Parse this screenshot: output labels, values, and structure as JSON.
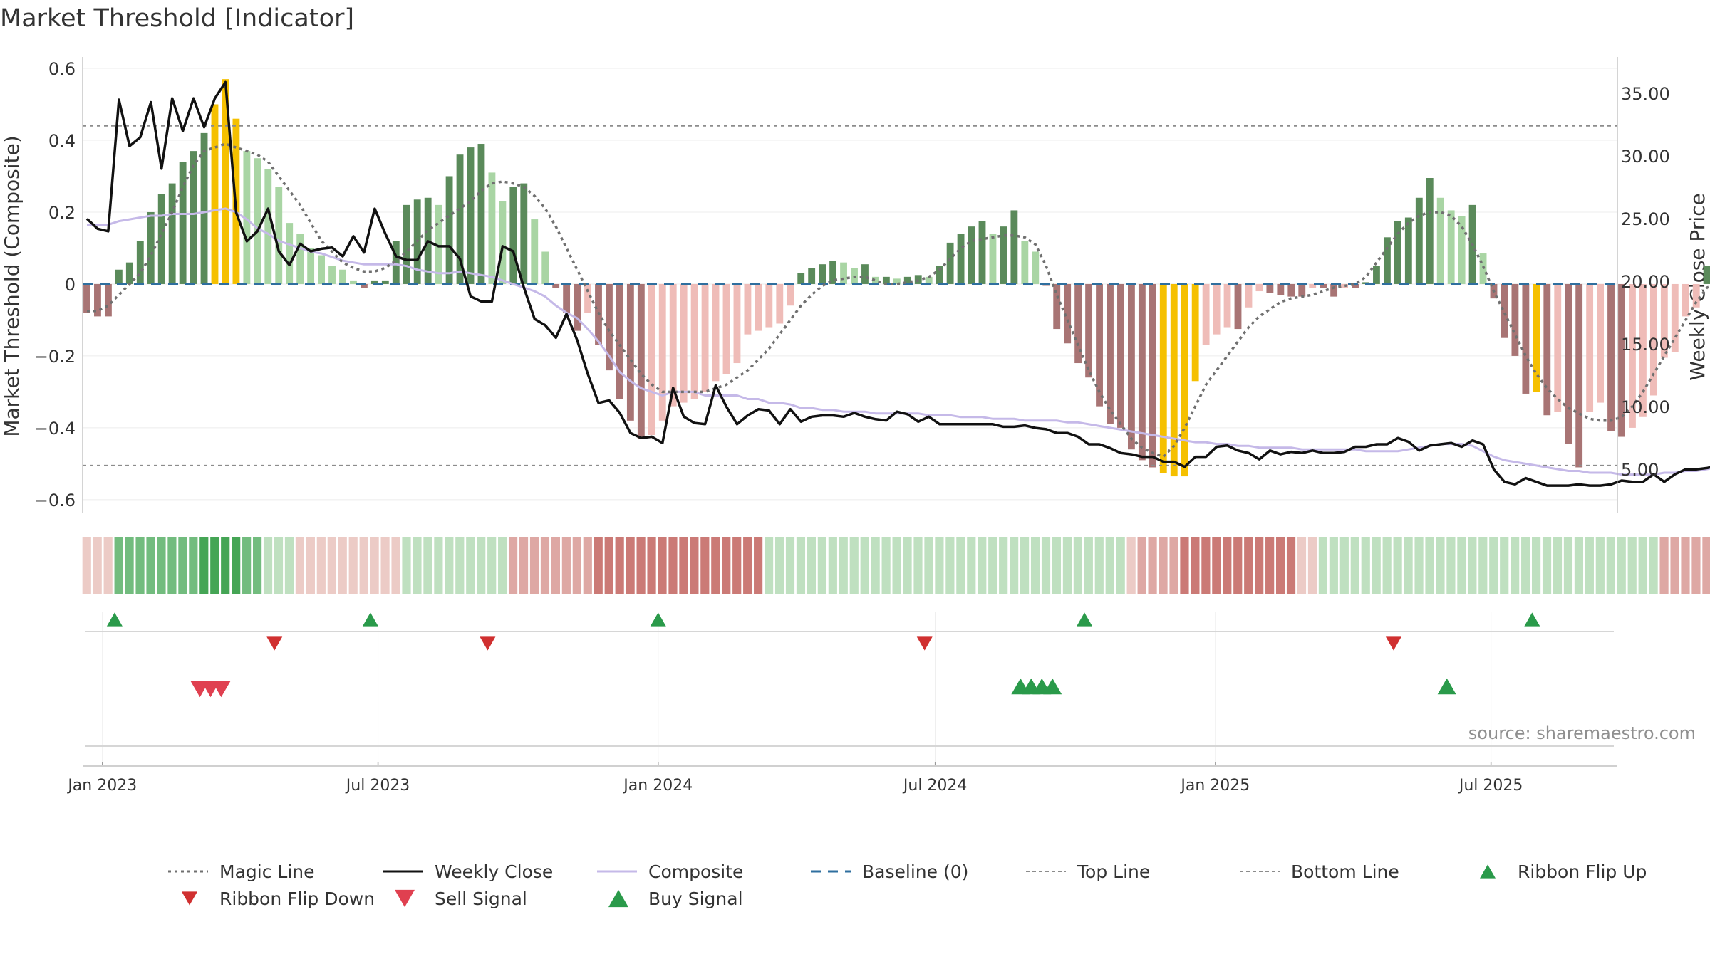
{
  "chart_data": {
    "type": "bar",
    "title": "Market Threshold [Indicator]",
    "ylabel": "Market Threshold (Composite)",
    "y2label": "Weekly Close Price",
    "source": "source: sharemaestro.com",
    "ylim": [
      -0.62,
      0.6
    ],
    "y2lim": [
      2.0,
      37.0
    ],
    "yticks": [
      0.6,
      0.4,
      0.2,
      0,
      -0.2,
      -0.4,
      -0.6
    ],
    "ytick_labels": [
      "0.6",
      "0.4",
      "0.2",
      "0",
      "−0.2",
      "−0.4",
      "−0.6"
    ],
    "y2ticks": [
      35,
      30,
      25,
      20,
      15,
      10,
      5
    ],
    "y2tick_labels": [
      "35.00",
      "30.00",
      "25.00",
      "20.00",
      "15.00",
      "10.00",
      "5.00"
    ],
    "xlim": [
      "2022-12-19",
      "2025-09-22"
    ],
    "xticks": [
      {
        "date": "2023-01-01",
        "label": "Jan 2023"
      },
      {
        "date": "2023-07-01",
        "label": "Jul 2023"
      },
      {
        "date": "2024-01-01",
        "label": "Jan 2024"
      },
      {
        "date": "2024-07-01",
        "label": "Jul 2024"
      },
      {
        "date": "2025-01-01",
        "label": "Jan 2025"
      },
      {
        "date": "2025-07-01",
        "label": "Jul 2025"
      }
    ],
    "start_date": "2022-12-19",
    "period_days": 7,
    "top_line": 0.44,
    "bottom_line": -0.505,
    "grid": true,
    "legend_position": "bottom",
    "colors": {
      "pos_strong": "#5a8a5a",
      "pos_light": "#a9d5a4",
      "neg_strong": "#a87474",
      "neg_light": "#efbcb8",
      "extreme": "#f5c000",
      "close": "#111111",
      "composite": "#c5b9e8",
      "magic": "#707070",
      "baseline": "#2f6f9f",
      "threshold": "#8c8c8c",
      "up_marker": "#2a9a4a",
      "down_marker": "#d03030",
      "sell_marker": "#e04050"
    },
    "bars": [
      -0.08,
      -0.09,
      -0.09,
      0.04,
      0.06,
      0.12,
      0.2,
      0.25,
      0.28,
      0.34,
      0.37,
      0.42,
      0.5,
      0.57,
      0.46,
      0.37,
      0.35,
      0.32,
      0.27,
      0.17,
      0.14,
      0.1,
      0.08,
      0.05,
      0.04,
      0.01,
      -0.01,
      0.01,
      0.01,
      0.12,
      0.22,
      0.235,
      0.24,
      0.22,
      0.3,
      0.36,
      0.38,
      0.39,
      0.31,
      0.23,
      0.27,
      0.28,
      0.18,
      0.09,
      -0.01,
      -0.08,
      -0.13,
      -0.08,
      -0.17,
      -0.24,
      -0.32,
      -0.38,
      -0.43,
      -0.42,
      -0.38,
      -0.34,
      -0.33,
      -0.32,
      -0.3,
      -0.27,
      -0.25,
      -0.22,
      -0.14,
      -0.13,
      -0.12,
      -0.11,
      -0.06,
      0.03,
      0.045,
      0.055,
      0.065,
      0.06,
      0.045,
      0.055,
      0.02,
      0.02,
      0.015,
      0.02,
      0.025,
      0.02,
      0.05,
      0.115,
      0.14,
      0.16,
      0.175,
      0.14,
      0.16,
      0.205,
      0.12,
      0.09,
      -0.005,
      -0.125,
      -0.165,
      -0.22,
      -0.26,
      -0.34,
      -0.39,
      -0.4,
      -0.46,
      -0.49,
      -0.51,
      -0.525,
      -0.535,
      -0.535,
      -0.27,
      -0.17,
      -0.14,
      -0.12,
      -0.125,
      -0.065,
      -0.02,
      -0.025,
      -0.03,
      -0.035,
      -0.035,
      -0.01,
      -0.01,
      -0.035,
      -0.01,
      -0.01,
      0.005,
      0.05,
      0.13,
      0.175,
      0.185,
      0.24,
      0.295,
      0.24,
      0.205,
      0.19,
      0.22,
      0.085,
      -0.04,
      -0.15,
      -0.2,
      -0.305,
      -0.3,
      -0.365,
      -0.355,
      -0.445,
      -0.51,
      -0.355,
      -0.33,
      -0.41,
      -0.425,
      -0.4,
      -0.37,
      -0.31,
      -0.205,
      -0.19,
      -0.09,
      -0.065,
      0.05,
      0.085,
      0.145,
      0.225
    ],
    "bar_extreme": [
      12,
      13,
      14,
      101,
      102,
      103,
      104,
      136
    ],
    "weekly_close": [
      25.0,
      24.2,
      24.0,
      34.5,
      30.8,
      31.5,
      34.3,
      29.0,
      34.6,
      32.0,
      34.6,
      32.3,
      34.6,
      35.9,
      25.5,
      23.2,
      24.0,
      25.8,
      22.4,
      21.3,
      23.0,
      22.4,
      22.6,
      22.7,
      22.0,
      23.6,
      22.3,
      25.8,
      23.8,
      22.0,
      21.7,
      21.7,
      23.2,
      22.8,
      22.8,
      21.8,
      18.8,
      18.4,
      18.4,
      22.8,
      22.4,
      19.5,
      17.0,
      16.5,
      15.5,
      17.4,
      15.3,
      12.6,
      10.3,
      10.5,
      9.5,
      7.9,
      7.5,
      7.6,
      7.1,
      11.5,
      9.2,
      8.7,
      8.6,
      11.7,
      10.0,
      8.6,
      9.3,
      9.8,
      9.7,
      8.6,
      9.8,
      8.8,
      9.2,
      9.3,
      9.3,
      9.2,
      9.5,
      9.2,
      9.0,
      8.9,
      9.6,
      9.4,
      8.8,
      9.2,
      8.6,
      8.6,
      8.6,
      8.6,
      8.6,
      8.6,
      8.4,
      8.4,
      8.5,
      8.3,
      8.2,
      7.9,
      7.9,
      7.6,
      7.0,
      7.0,
      6.7,
      6.3,
      6.2,
      6.0,
      6.0,
      5.6,
      5.6,
      5.2,
      6.0,
      6.0,
      6.8,
      6.9,
      6.5,
      6.3,
      5.8,
      6.5,
      6.2,
      6.4,
      6.3,
      6.5,
      6.3,
      6.3,
      6.4,
      6.8,
      6.8,
      7.0,
      7.0,
      7.5,
      7.2,
      6.5,
      6.9,
      7.0,
      7.1,
      6.8,
      7.3,
      7.0,
      5.0,
      4.0,
      3.8,
      4.3,
      4.0,
      3.7,
      3.7,
      3.7,
      3.8,
      3.7,
      3.7,
      3.8,
      4.1,
      4.0,
      4.0,
      4.6,
      4.0,
      4.6,
      5.0,
      5.0,
      5.1,
      5.3,
      6.0,
      6.3
    ],
    "composite": [
      0.165,
      0.165,
      0.165,
      0.175,
      0.18,
      0.185,
      0.19,
      0.19,
      0.195,
      0.195,
      0.195,
      0.2,
      0.205,
      0.21,
      0.2,
      0.18,
      0.155,
      0.14,
      0.12,
      0.11,
      0.1,
      0.09,
      0.085,
      0.075,
      0.065,
      0.06,
      0.055,
      0.055,
      0.055,
      0.055,
      0.05,
      0.04,
      0.035,
      0.03,
      0.03,
      0.035,
      0.03,
      0.025,
      0.02,
      0.01,
      0.0,
      -0.01,
      -0.02,
      -0.035,
      -0.06,
      -0.08,
      -0.095,
      -0.125,
      -0.16,
      -0.2,
      -0.245,
      -0.27,
      -0.29,
      -0.3,
      -0.31,
      -0.3,
      -0.3,
      -0.3,
      -0.31,
      -0.31,
      -0.31,
      -0.31,
      -0.32,
      -0.32,
      -0.33,
      -0.33,
      -0.335,
      -0.345,
      -0.345,
      -0.35,
      -0.35,
      -0.355,
      -0.355,
      -0.355,
      -0.36,
      -0.36,
      -0.36,
      -0.36,
      -0.36,
      -0.365,
      -0.365,
      -0.365,
      -0.37,
      -0.37,
      -0.37,
      -0.375,
      -0.375,
      -0.375,
      -0.38,
      -0.38,
      -0.38,
      -0.38,
      -0.385,
      -0.385,
      -0.39,
      -0.395,
      -0.4,
      -0.405,
      -0.41,
      -0.415,
      -0.42,
      -0.425,
      -0.43,
      -0.435,
      -0.44,
      -0.44,
      -0.445,
      -0.445,
      -0.45,
      -0.45,
      -0.455,
      -0.455,
      -0.455,
      -0.455,
      -0.46,
      -0.46,
      -0.46,
      -0.46,
      -0.46,
      -0.46,
      -0.465,
      -0.465,
      -0.465,
      -0.465,
      -0.46,
      -0.455,
      -0.45,
      -0.445,
      -0.445,
      -0.445,
      -0.45,
      -0.465,
      -0.48,
      -0.49,
      -0.495,
      -0.5,
      -0.505,
      -0.51,
      -0.515,
      -0.52,
      -0.52,
      -0.525,
      -0.525,
      -0.525,
      -0.53,
      -0.53,
      -0.53,
      -0.53,
      -0.525,
      -0.525,
      -0.52,
      -0.52,
      -0.515,
      -0.51
    ],
    "magic": [
      -0.075,
      -0.075,
      -0.06,
      -0.03,
      0.0,
      0.03,
      0.08,
      0.14,
      0.2,
      0.27,
      0.33,
      0.37,
      0.38,
      0.39,
      0.38,
      0.37,
      0.36,
      0.34,
      0.3,
      0.26,
      0.22,
      0.17,
      0.12,
      0.09,
      0.06,
      0.045,
      0.035,
      0.035,
      0.045,
      0.065,
      0.09,
      0.12,
      0.15,
      0.17,
      0.19,
      0.21,
      0.23,
      0.26,
      0.28,
      0.285,
      0.28,
      0.27,
      0.245,
      0.21,
      0.16,
      0.1,
      0.04,
      -0.02,
      -0.08,
      -0.13,
      -0.17,
      -0.21,
      -0.25,
      -0.28,
      -0.3,
      -0.3,
      -0.3,
      -0.3,
      -0.3,
      -0.29,
      -0.28,
      -0.26,
      -0.24,
      -0.21,
      -0.18,
      -0.14,
      -0.1,
      -0.06,
      -0.03,
      -0.005,
      0.01,
      0.015,
      0.02,
      0.02,
      0.01,
      0.0,
      0.0,
      0.005,
      0.01,
      0.02,
      0.04,
      0.07,
      0.1,
      0.12,
      0.125,
      0.13,
      0.135,
      0.135,
      0.13,
      0.11,
      0.05,
      -0.03,
      -0.1,
      -0.17,
      -0.24,
      -0.3,
      -0.35,
      -0.39,
      -0.43,
      -0.455,
      -0.47,
      -0.48,
      -0.45,
      -0.4,
      -0.34,
      -0.28,
      -0.24,
      -0.2,
      -0.16,
      -0.12,
      -0.09,
      -0.07,
      -0.05,
      -0.04,
      -0.035,
      -0.03,
      -0.02,
      -0.01,
      -0.005,
      0.0,
      0.02,
      0.06,
      0.1,
      0.14,
      0.17,
      0.19,
      0.2,
      0.2,
      0.19,
      0.16,
      0.11,
      0.05,
      -0.02,
      -0.08,
      -0.14,
      -0.2,
      -0.25,
      -0.29,
      -0.32,
      -0.345,
      -0.36,
      -0.375,
      -0.38,
      -0.38,
      -0.37,
      -0.34,
      -0.3,
      -0.25,
      -0.2,
      -0.15,
      -0.1,
      -0.05,
      -0.01,
      0.0
    ],
    "ribbon": [
      -1,
      -1,
      -1,
      2,
      2,
      2,
      2,
      2,
      2,
      2,
      2,
      3,
      3,
      3,
      3,
      2,
      2,
      1,
      1,
      1,
      -1,
      -1,
      -1,
      -1,
      -1,
      -1,
      -1,
      -1,
      -1,
      -1,
      1,
      1,
      1,
      1,
      1,
      1,
      1,
      1,
      1,
      1,
      -2,
      -2,
      -2,
      -2,
      -2,
      -2,
      -2,
      -2,
      -3,
      -3,
      -3,
      -3,
      -3,
      -3,
      -3,
      -3,
      -3,
      -3,
      -3,
      -3,
      -3,
      -3,
      -3,
      -3,
      1,
      1,
      1,
      1,
      1,
      1,
      1,
      1,
      1,
      1,
      1,
      1,
      1,
      1,
      1,
      1,
      1,
      1,
      1,
      1,
      1,
      1,
      1,
      1,
      1,
      1,
      1,
      1,
      1,
      1,
      1,
      1,
      1,
      1,
      -1,
      -2,
      -2,
      -2,
      -2,
      -3,
      -3,
      -3,
      -3,
      -3,
      -3,
      -3,
      -3,
      -3,
      -3,
      -3,
      -1,
      -1,
      1,
      1,
      1,
      1,
      1,
      1,
      1,
      1,
      1,
      1,
      1,
      1,
      1,
      1,
      1,
      1,
      1,
      1,
      1,
      1,
      1,
      1,
      1,
      1,
      1,
      1,
      1,
      1,
      1,
      1,
      1,
      1,
      -2,
      -2,
      -2,
      -2,
      -2,
      -2,
      -2,
      -2,
      -2,
      -2,
      -2,
      -2,
      -2,
      -2,
      -2,
      -2,
      -2,
      -1,
      -1,
      2,
      2,
      2,
      2,
      2,
      2,
      2,
      2,
      2
    ],
    "ribbon_flip_up_dates": [
      "2023-01-09",
      "2023-06-26",
      "2024-01-01",
      "2024-10-07",
      "2025-07-28"
    ],
    "ribbon_flip_down_dates": [
      "2023-04-24",
      "2023-09-11",
      "2024-06-24",
      "2025-04-28"
    ],
    "sell_signal_dates": [
      "2023-03-06",
      "2023-03-13",
      "2023-03-20"
    ],
    "buy_signal_dates": [
      "2024-08-26",
      "2024-09-02",
      "2024-09-09",
      "2024-09-16",
      "2025-06-02"
    ],
    "legend": [
      {
        "label": "Magic Line",
        "kind": "dotted",
        "color": "#707070"
      },
      {
        "label": "Weekly Close",
        "kind": "solid",
        "color": "#111111"
      },
      {
        "label": "Composite",
        "kind": "solid-light",
        "color": "#c5b9e8"
      },
      {
        "label": "Baseline (0)",
        "kind": "dashed",
        "color": "#2f6f9f"
      },
      {
        "label": "Top Line",
        "kind": "dashed-thin",
        "color": "#8c8c8c"
      },
      {
        "label": "Bottom Line",
        "kind": "dashed-thin",
        "color": "#8c8c8c"
      },
      {
        "label": "Ribbon Flip Up",
        "kind": "tri-up",
        "color": "#2a9a4a"
      },
      {
        "label": "Ribbon Flip Down",
        "kind": "tri-down",
        "color": "#d03030"
      },
      {
        "label": "Sell Signal",
        "kind": "tri-down-big",
        "color": "#e04050"
      },
      {
        "label": "Buy Signal",
        "kind": "tri-up-big",
        "color": "#2a9a4a"
      }
    ]
  }
}
